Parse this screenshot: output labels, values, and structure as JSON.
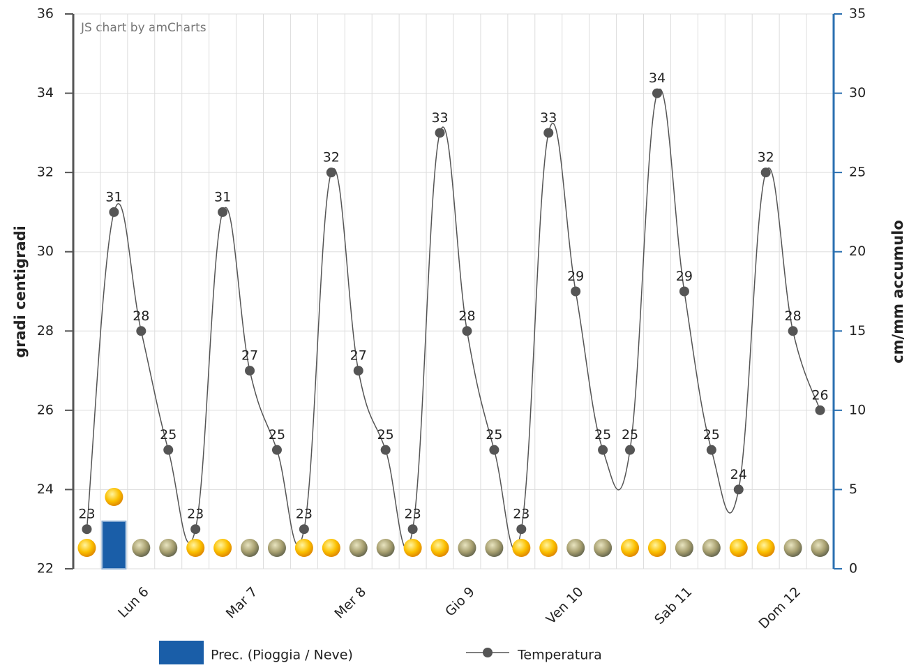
{
  "chart_data": {
    "type": "line",
    "watermark": "JS chart by amCharts",
    "y_label": "gradi centigradi",
    "y2_label": "cm/mm accumulo",
    "categories": [
      null,
      null,
      "Lun 6",
      null,
      null,
      null,
      "Mar 7",
      null,
      null,
      null,
      "Mer 8",
      null,
      null,
      null,
      "Gio 9",
      null,
      null,
      null,
      "Ven 10",
      null,
      null,
      null,
      "Sab 11",
      null,
      null,
      null,
      "Dom 12",
      null
    ],
    "series": [
      {
        "name": "Prec. (Pioggia / Neve)",
        "type": "bar",
        "axis": "y2",
        "color": "#1a5ea8",
        "values": [
          0,
          3,
          0,
          0,
          0,
          0,
          0,
          0,
          0,
          0,
          0,
          0,
          0,
          0,
          0,
          0,
          0,
          0,
          0,
          0,
          0,
          0,
          0,
          0,
          0,
          0,
          0,
          0
        ]
      },
      {
        "name": "Temperatura",
        "type": "line",
        "color": "#555555",
        "values": [
          23,
          31,
          28,
          25,
          23,
          31,
          27,
          25,
          23,
          32,
          27,
          25,
          23,
          33,
          28,
          25,
          23,
          33,
          29,
          25,
          25,
          34,
          29,
          25,
          24,
          32,
          28,
          26
        ]
      }
    ],
    "ylim": [
      22,
      36
    ],
    "yticks": [
      22,
      24,
      26,
      28,
      30,
      32,
      34,
      36
    ],
    "y2lim": [
      0,
      35
    ],
    "y2ticks": [
      0,
      5,
      10,
      15,
      20,
      25,
      30,
      35
    ],
    "grid": true
  }
}
